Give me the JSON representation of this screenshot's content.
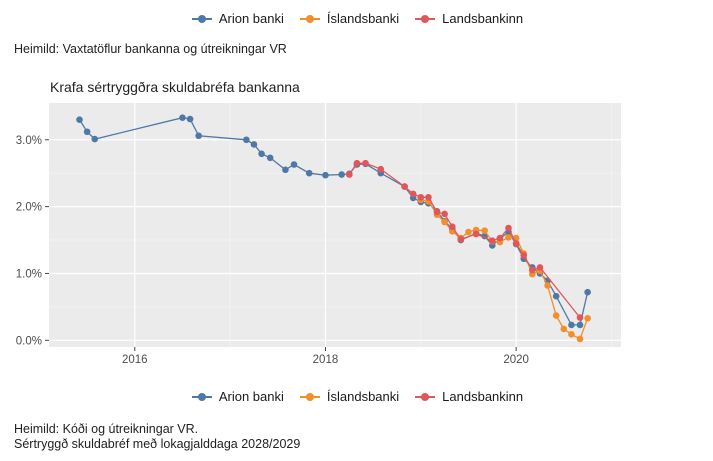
{
  "legend": {
    "items": [
      {
        "label": "Arion banki",
        "color": "#4e79a7"
      },
      {
        "label": "Íslandsbanki",
        "color": "#f28e2b"
      },
      {
        "label": "Landsbankinn",
        "color": "#e15759"
      }
    ]
  },
  "source_top": "Heimild: Vaxtatöflur bankanna og útreikningar VR",
  "footer": {
    "source": "Heimild: Kóði og útreikningar VR.",
    "note": "Sértryggð skuldabréf með lokagjalddaga 2028/2029"
  },
  "chart_data": {
    "type": "line",
    "title": "Krafa sértryggðra skuldabréfa bankanna",
    "xlabel": "",
    "ylabel": "",
    "xlim": [
      2015.1,
      2021.1
    ],
    "ylim": [
      -0.1,
      3.55
    ],
    "x_ticks": [
      2016,
      2018,
      2020
    ],
    "y_ticks": [
      {
        "v": 0,
        "label": "0.0%"
      },
      {
        "v": 1,
        "label": "1.0%"
      },
      {
        "v": 2,
        "label": "2.0%"
      },
      {
        "v": 3,
        "label": "3.0%"
      }
    ],
    "grid": true,
    "legend_position": "top and bottom",
    "series": [
      {
        "name": "Arion banki",
        "color": "#4e79a7",
        "points": [
          [
            2015.42,
            3.3
          ],
          [
            2015.5,
            3.12
          ],
          [
            2015.58,
            3.01
          ],
          [
            2016.5,
            3.33
          ],
          [
            2016.58,
            3.31
          ],
          [
            2016.67,
            3.06
          ],
          [
            2017.17,
            3.0
          ],
          [
            2017.25,
            2.93
          ],
          [
            2017.33,
            2.79
          ],
          [
            2017.42,
            2.73
          ],
          [
            2017.58,
            2.55
          ],
          [
            2017.67,
            2.63
          ],
          [
            2017.83,
            2.5
          ],
          [
            2018.0,
            2.47
          ],
          [
            2018.17,
            2.48
          ],
          [
            2018.25,
            2.49
          ],
          [
            2018.33,
            2.63
          ],
          [
            2018.42,
            2.64
          ],
          [
            2018.58,
            2.5
          ],
          [
            2018.83,
            2.3
          ],
          [
            2018.92,
            2.13
          ],
          [
            2019.0,
            2.07
          ],
          [
            2019.08,
            2.05
          ],
          [
            2019.17,
            1.93
          ],
          [
            2019.25,
            1.78
          ],
          [
            2019.33,
            1.67
          ],
          [
            2019.42,
            1.5
          ],
          [
            2019.58,
            1.6
          ],
          [
            2019.67,
            1.56
          ],
          [
            2019.75,
            1.42
          ],
          [
            2019.83,
            1.52
          ],
          [
            2019.92,
            1.62
          ],
          [
            2020.0,
            1.44
          ],
          [
            2020.08,
            1.22
          ],
          [
            2020.17,
            1.09
          ],
          [
            2020.25,
            1.0
          ],
          [
            2020.33,
            0.89
          ],
          [
            2020.42,
            0.66
          ],
          [
            2020.58,
            0.23
          ],
          [
            2020.67,
            0.23
          ],
          [
            2020.75,
            0.72
          ]
        ]
      },
      {
        "name": "Íslandsbanki",
        "color": "#f28e2b",
        "points": [
          [
            2019.0,
            2.1
          ],
          [
            2019.08,
            2.08
          ],
          [
            2019.17,
            1.88
          ],
          [
            2019.25,
            1.77
          ],
          [
            2019.33,
            1.63
          ],
          [
            2019.42,
            1.53
          ],
          [
            2019.5,
            1.62
          ],
          [
            2019.58,
            1.65
          ],
          [
            2019.67,
            1.64
          ],
          [
            2019.75,
            1.48
          ],
          [
            2019.83,
            1.47
          ],
          [
            2019.92,
            1.54
          ],
          [
            2020.0,
            1.53
          ],
          [
            2020.08,
            1.3
          ],
          [
            2020.17,
            0.99
          ],
          [
            2020.25,
            1.04
          ],
          [
            2020.33,
            0.82
          ],
          [
            2020.42,
            0.37
          ],
          [
            2020.5,
            0.17
          ],
          [
            2020.58,
            0.09
          ],
          [
            2020.67,
            0.02
          ],
          [
            2020.75,
            0.33
          ]
        ]
      },
      {
        "name": "Landsbankinn",
        "color": "#e15759",
        "points": [
          [
            2018.25,
            2.48
          ],
          [
            2018.33,
            2.65
          ],
          [
            2018.42,
            2.65
          ],
          [
            2018.58,
            2.56
          ],
          [
            2018.83,
            2.3
          ],
          [
            2018.92,
            2.19
          ],
          [
            2019.0,
            2.14
          ],
          [
            2019.08,
            2.14
          ],
          [
            2019.17,
            1.92
          ],
          [
            2019.25,
            1.89
          ],
          [
            2019.33,
            1.7
          ],
          [
            2019.42,
            1.51
          ],
          [
            2019.58,
            1.59
          ],
          [
            2019.75,
            1.49
          ],
          [
            2019.83,
            1.53
          ],
          [
            2019.92,
            1.68
          ],
          [
            2020.0,
            1.45
          ],
          [
            2020.08,
            1.27
          ],
          [
            2020.17,
            1.05
          ],
          [
            2020.25,
            1.09
          ],
          [
            2020.67,
            0.34
          ]
        ]
      }
    ]
  }
}
